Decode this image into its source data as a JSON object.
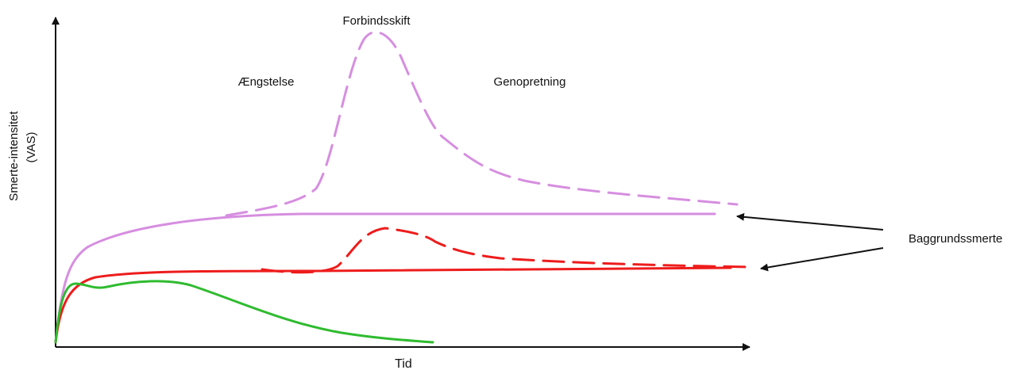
{
  "labels": {
    "y_axis_line1": "Smerte-intensitet",
    "y_axis_line2": "(VAS)",
    "x_axis": "Tid",
    "dressing_change": "Forbindsskift",
    "anxiety": "Ængstelse",
    "recovery": "Genopretning",
    "background_pain": "Baggrundssmerte"
  },
  "colors": {
    "violet": "#d68ee0",
    "red": "#ee1c1c",
    "green": "#2fbb2f",
    "axis": "#111111"
  }
}
